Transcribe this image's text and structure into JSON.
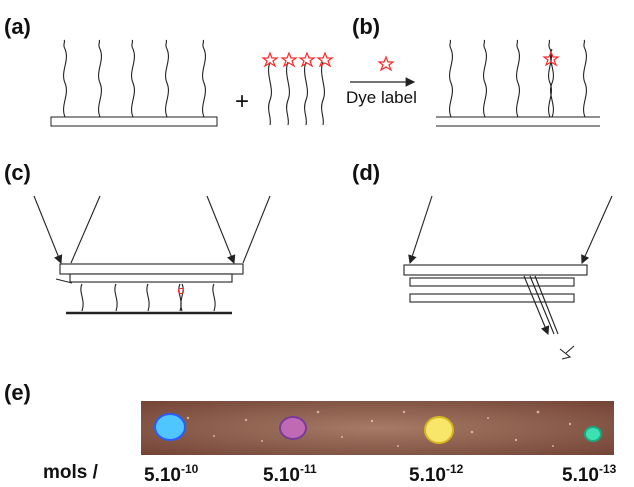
{
  "panels": {
    "a": "(a)",
    "b": "(b)",
    "c": "(c)",
    "d": "(d)",
    "e": "(e)"
  },
  "plus_sign": "+",
  "arrow_caption": "Dye label",
  "star_color": "#ff2a2a",
  "spots": [
    {
      "color": "#4fc6ff",
      "rim": "#2a5cff"
    },
    {
      "color": "#c06ab4",
      "rim": "#7a3a9a"
    },
    {
      "color": "#f8e66a",
      "rim": "#d8b820"
    },
    {
      "color": "#3ce0b2",
      "rim": "#1aa880"
    }
  ],
  "concentration_row": {
    "prefix": "mols /",
    "labels": [
      {
        "base": "5.10",
        "exp": "-10"
      },
      {
        "base": "5.10",
        "exp": "-11"
      },
      {
        "base": "5.10",
        "exp": "-12"
      },
      {
        "base": "5.10",
        "exp": "-13"
      }
    ]
  }
}
